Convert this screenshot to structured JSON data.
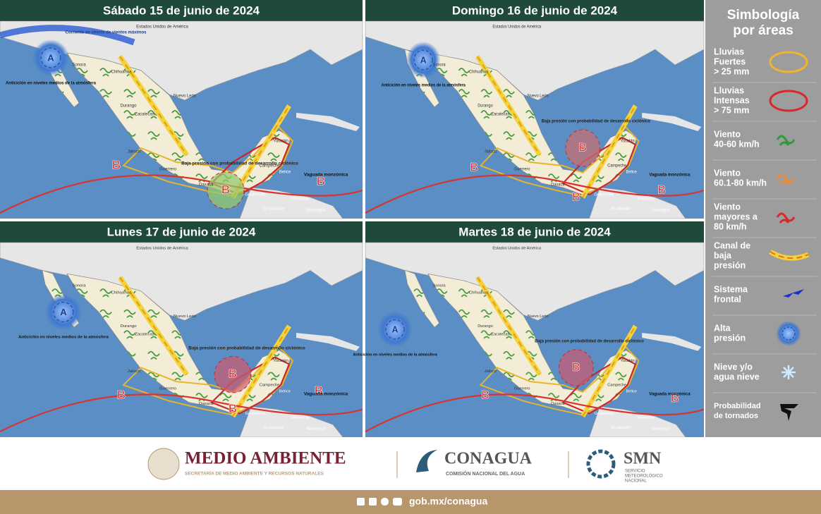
{
  "panels": [
    {
      "title": "Sábado 15 de junio de 2024",
      "country": "Estados Unidos de América",
      "jet": "Corriente en chorro de vientos máximos",
      "high_symbol": "A",
      "high_label": "Anticiclón en niveles medios de la atmósfera",
      "low_label": "Baja presión con probabilidad de desarrollo ciclónico",
      "trough_label": "Vaguada monzónica",
      "lows": [
        "B",
        "B",
        "B"
      ],
      "states": [
        "Sonora",
        "Chihuahua",
        "Durango",
        "Zacatecas",
        "Nuevo León",
        "Jalisco",
        "Guerrero",
        "Oaxaca",
        "Campeche",
        "Yucatán"
      ],
      "countries": [
        "Belice",
        "Guatemala",
        "Honduras",
        "El salvador",
        "Nicaragua"
      ]
    },
    {
      "title": "Domingo 16 de junio de 2024",
      "country": "Estados Unidos de América",
      "high_symbol": "A",
      "high_label": "Anticiclón en niveles medios de la atmósfera",
      "low_label": "Baja presión con probabilidad de desarrollo ciclónico",
      "trough_label": "Vaguada monzónica",
      "lows": [
        "B",
        "B",
        "B",
        "B"
      ],
      "states": [
        "Sonora",
        "Chihuahua",
        "Durango",
        "Zacatecas",
        "Nuevo León",
        "Jalisco",
        "Guerrero",
        "Oaxaca",
        "Campeche",
        "Yucatán"
      ],
      "countries": [
        "Belice",
        "Guatemala",
        "Honduras",
        "El salvador",
        "Nicaragua"
      ]
    },
    {
      "title": "Lunes 17 de junio de 2024",
      "country": "Estados Unidos de América",
      "high_symbol": "A",
      "high_label": "Anticiclón en niveles medios de la atmósfera",
      "low_label": "Baja presión con probabilidad de desarrollo ciclónico",
      "trough_label": "Vaguada monzónica",
      "lows": [
        "B",
        "B",
        "B",
        "B"
      ],
      "states": [
        "Sonora",
        "Chihuahua",
        "Durango",
        "Zacatecas",
        "Nuevo León",
        "Jalisco",
        "Guerrero",
        "Oaxaca",
        "Campeche",
        "Yucatán"
      ],
      "countries": [
        "Belice",
        "Guatemala",
        "Honduras",
        "El salvador",
        "Nicaragua"
      ]
    },
    {
      "title": "Martes 18 de junio de 2024",
      "country": "Estados Unidos de América",
      "high_symbol": "A",
      "high_label": "Anticiclón en niveles medios de la atmósfera",
      "low_label": "Baja presión con probabilidad de desarrollo ciclónico",
      "trough_label": "Vaguada monzónica",
      "lows": [
        "B",
        "B",
        "B"
      ],
      "states": [
        "Sonora",
        "Chihuahua",
        "Durango",
        "Zacatecas",
        "Nuevo León",
        "Jalisco",
        "Guerrero",
        "Oaxaca",
        "Campeche",
        "Yucatán"
      ],
      "countries": [
        "Belice",
        "Guatemala",
        "Honduras",
        "El salvador",
        "Nicaragua"
      ]
    }
  ],
  "legend": {
    "title": [
      "Simbología",
      "por áreas"
    ],
    "items": [
      {
        "lines": [
          "Lluvias",
          "Fuertes",
          "> 25 mm"
        ]
      },
      {
        "lines": [
          "Lluvias",
          "Intensas",
          "> 75 mm"
        ]
      },
      {
        "lines": [
          "Viento",
          "40-60 km/h"
        ]
      },
      {
        "lines": [
          "Viento",
          "60.1-80 km/h"
        ]
      },
      {
        "lines": [
          "Viento",
          "mayores a",
          "80 km/h"
        ]
      },
      {
        "lines": [
          "Canal de",
          "baja",
          "presión"
        ]
      },
      {
        "lines": [
          "Sistema",
          "frontal"
        ]
      },
      {
        "lines": [
          "Alta",
          "presión"
        ]
      },
      {
        "lines": [
          "Nieve y/o",
          "agua nieve"
        ]
      },
      {
        "lines": [
          "Probabilidad",
          "de tornados"
        ]
      }
    ]
  },
  "footer": {
    "semarnat": "MEDIO AMBIENTE",
    "semarnat_sub": "SECRETARÍA DE MEDIO AMBIENTE Y RECURSOS NATURALES",
    "conagua": "CONAGUA",
    "conagua_sub": "COMISIÓN NACIONAL DEL AGUA",
    "smn": "SMN",
    "smn_sub": [
      "SERVICIO",
      "METEOROLÓGICO",
      "NACIONAL"
    ],
    "url": "gob.mx/conagua"
  }
}
